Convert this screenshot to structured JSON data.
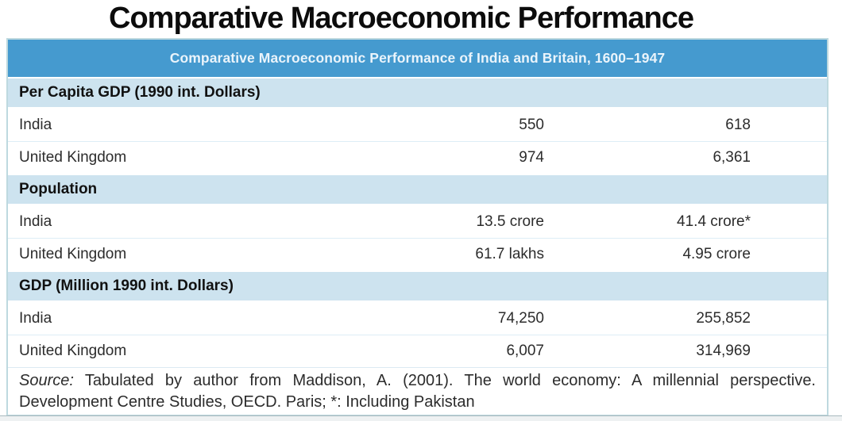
{
  "page_title": "Comparative Macroeconomic Performance",
  "table": {
    "header": "Comparative Macroeconomic Performance of India and Britain, 1600–1947",
    "sections": [
      {
        "title": "Per Capita GDP (1990 int. Dollars)",
        "rows": [
          {
            "label": "India",
            "v1": "550",
            "v2": "618"
          },
          {
            "label": "United Kingdom",
            "v1": "974",
            "v2": "6,361"
          }
        ]
      },
      {
        "title": "Population",
        "rows": [
          {
            "label": "India",
            "v1": "13.5 crore",
            "v2": "41.4 crore*"
          },
          {
            "label": "United Kingdom",
            "v1": "61.7 lakhs",
            "v2": "4.95 crore"
          }
        ]
      },
      {
        "title": "GDP (Million 1990 int. Dollars)",
        "rows": [
          {
            "label": "India",
            "v1": "74,250",
            "v2": "255,852"
          },
          {
            "label": "United Kingdom",
            "v1": "6,007",
            "v2": "314,969"
          }
        ]
      }
    ],
    "source_label": "Source:",
    "source_text": " Tabulated by author from Maddison, A. (2001). The world economy: A millennial perspective. Development Centre Studies, OECD. Paris; *: Including Pakistan"
  },
  "colors": {
    "header_bar_bg": "#459acf",
    "header_bar_text": "#eaf4fb",
    "section_band_bg": "#cde3ef",
    "row_divider": "#ddedf6",
    "table_border": "#bed9df",
    "title_text": "#0c0c0c",
    "body_text": "#2c2c2c"
  }
}
